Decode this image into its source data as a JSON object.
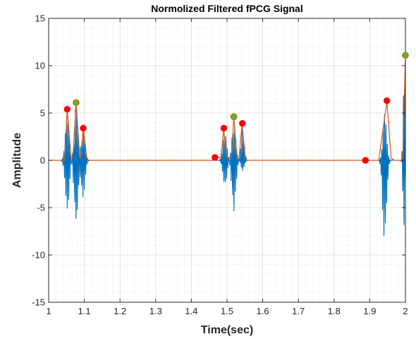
{
  "chart_data": {
    "type": "line",
    "title": "Normolized Filtered fPCG Signal",
    "xlabel": "Time(sec)",
    "ylabel": "Amplitude",
    "xlim": [
      1,
      2
    ],
    "ylim": [
      -15,
      15
    ],
    "xticks": [
      "1",
      "1.1",
      "1.2",
      "1.3",
      "1.4",
      "1.5",
      "1.6",
      "1.7",
      "1.8",
      "1.9",
      "2"
    ],
    "yticks": [
      "15",
      "10",
      "5",
      "0",
      "-5",
      "-10",
      "-15"
    ],
    "grid": "major and minor",
    "series": [
      {
        "kind": "signal",
        "color": "#0072BD",
        "bursts": [
          {
            "center": 1.052,
            "width": 0.012,
            "max": 5.4,
            "min": -6.2
          },
          {
            "center": 1.077,
            "width": 0.012,
            "max": 6.0,
            "min": -8.2
          },
          {
            "center": 1.097,
            "width": 0.012,
            "max": 3.3,
            "min": -4.4
          },
          {
            "center": 1.494,
            "width": 0.012,
            "max": 3.3,
            "min": -3.4
          },
          {
            "center": 1.519,
            "width": 0.012,
            "max": 4.4,
            "min": -6.2
          },
          {
            "center": 1.544,
            "width": 0.01,
            "max": 3.7,
            "min": -1.3
          },
          {
            "center": 1.942,
            "width": 0.012,
            "max": 5.2,
            "min": -10.5
          },
          {
            "center": 1.996,
            "width": 0.006,
            "max": 11.0,
            "min": -8.9
          }
        ]
      },
      {
        "kind": "envelope",
        "color": "#D95319",
        "x": [
          1.0,
          1.045,
          1.052,
          1.063,
          1.068,
          1.077,
          1.087,
          1.09,
          1.097,
          1.108,
          1.465,
          1.468,
          1.483,
          1.491,
          1.496,
          1.508,
          1.512,
          1.519,
          1.528,
          1.534,
          1.542,
          1.552,
          1.57,
          1.885,
          1.925,
          1.948,
          1.96,
          1.97,
          1.99,
          1.993,
          2.0
        ],
        "y": [
          0,
          0,
          5.4,
          0.3,
          0.3,
          6.1,
          0.3,
          0.3,
          3.4,
          0,
          0,
          0.3,
          0.3,
          3.4,
          0.3,
          0.3,
          0.3,
          4.5,
          0.3,
          0.3,
          3.9,
          0,
          0,
          0,
          0,
          6.2,
          0.2,
          0,
          0,
          0.5,
          11.1
        ]
      }
    ],
    "markers": {
      "red": {
        "color": "#FF0000",
        "x": [
          1.052,
          1.097,
          1.466,
          1.491,
          1.543,
          1.888,
          1.948
        ],
        "y": [
          5.4,
          3.4,
          0.3,
          3.4,
          3.9,
          0.0,
          6.3
        ]
      },
      "green": {
        "color": "#4CC319",
        "x": [
          1.077,
          1.519,
          2.0
        ],
        "y": [
          6.1,
          4.6,
          11.1
        ]
      }
    }
  }
}
